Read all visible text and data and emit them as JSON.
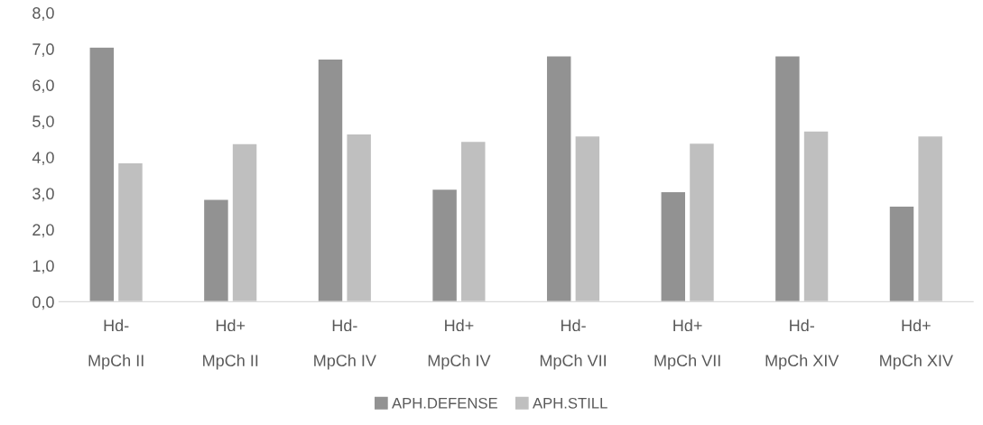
{
  "chart_data": {
    "type": "bar",
    "categories": [
      "Hd-\n\nMpCh II",
      "Hd+\n\nMpCh II",
      "Hd-\n\nMpCh IV",
      "Hd+\n\nMpCh IV",
      "Hd-\n\nMpCh VII",
      "Hd+\n\nMpCh VII",
      "Hd-\n\nMpCh XIV",
      "Hd+\n\nMpCh XIV"
    ],
    "series": [
      {
        "name": "APH.DEFENSE",
        "color": "#929292",
        "values": [
          7.05,
          2.84,
          6.72,
          3.12,
          6.81,
          3.05,
          6.81,
          2.65
        ]
      },
      {
        "name": "APH.STILL",
        "color": "#bfbfbf",
        "values": [
          3.85,
          4.38,
          4.65,
          4.44,
          4.59,
          4.39,
          4.73,
          4.59
        ]
      }
    ],
    "ylim": [
      0,
      8
    ],
    "yticks": [
      {
        "value": 0,
        "label": "0,0"
      },
      {
        "value": 1,
        "label": "1,0"
      },
      {
        "value": 2,
        "label": "2,0"
      },
      {
        "value": 3,
        "label": "3,0"
      },
      {
        "value": 4,
        "label": "4,0"
      },
      {
        "value": 5,
        "label": "5,0"
      },
      {
        "value": 6,
        "label": "6,0"
      },
      {
        "value": 7,
        "label": "7,0"
      },
      {
        "value": 8,
        "label": "8,0"
      }
    ],
    "grid": false,
    "legend": "bottom"
  }
}
